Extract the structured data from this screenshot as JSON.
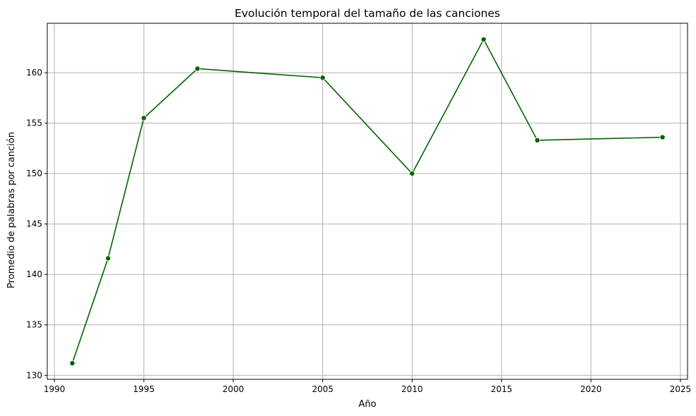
{
  "chart_data": {
    "type": "line",
    "title": "Evolución temporal del tamaño de las canciones",
    "xlabel": "Año",
    "ylabel": "Promedio de palabras por canción",
    "xlim": [
      1989.6,
      2025.4
    ],
    "ylim": [
      129.6,
      164.9
    ],
    "xticks": [
      1990,
      1995,
      2000,
      2005,
      2010,
      2015,
      2020,
      2025
    ],
    "yticks": [
      130,
      135,
      140,
      145,
      150,
      155,
      160
    ],
    "grid": true,
    "legend": "none",
    "series": [
      {
        "color": "#006400",
        "marker": "circle",
        "x": [
          1991,
          1993,
          1995,
          1998,
          2005,
          2010,
          2014,
          2017,
          2024
        ],
        "y": [
          131.2,
          141.6,
          155.5,
          160.4,
          159.5,
          150.0,
          163.3,
          153.3,
          153.6
        ]
      }
    ]
  }
}
